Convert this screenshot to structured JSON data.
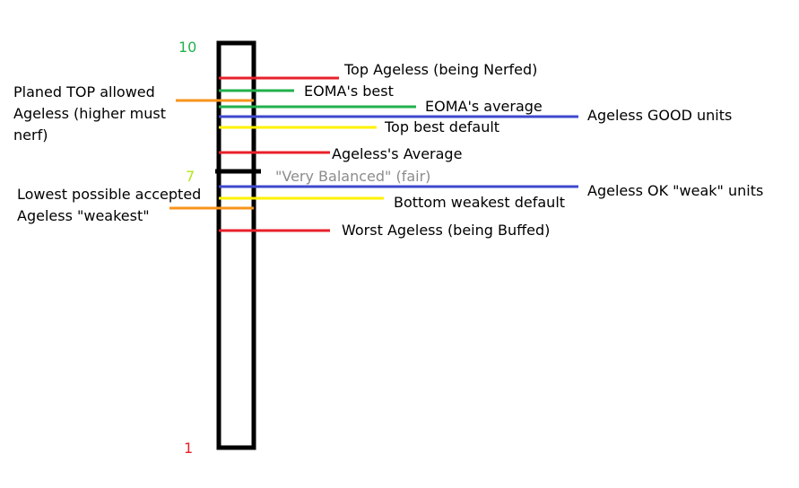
{
  "colors": {
    "red": "#e8202a",
    "green": "#22b14c",
    "blue": "#3f48cc",
    "yellow": "#fff200",
    "orange": "#f7941d",
    "black": "#000000",
    "gray": "#8c8c8c",
    "lime": "#b5e61d"
  },
  "scale": {
    "top_value": "10",
    "mid_value": "7",
    "bottom_value": "1"
  },
  "labels": {
    "top_ageless": "Top Ageless (being Nerfed)",
    "eoma_best": "EOMA's best",
    "eoma_average": "EOMA's average",
    "ageless_good_units": "Ageless GOOD units",
    "top_best_default": "Top best default",
    "ageless_average": "Ageless's Average",
    "very_balanced": "\"Very Balanced\" (fair)",
    "ageless_ok_weak_units": "Ageless OK \"weak\" units",
    "bottom_weakest_default": "Bottom weakest default",
    "worst_ageless": "Worst Ageless (being Buffed)",
    "planed_top_allowed": "Planed TOP allowed Ageless (higher must nerf)",
    "lowest_possible_accepted": "Lowest possible accepted Ageless \"weakest\""
  }
}
